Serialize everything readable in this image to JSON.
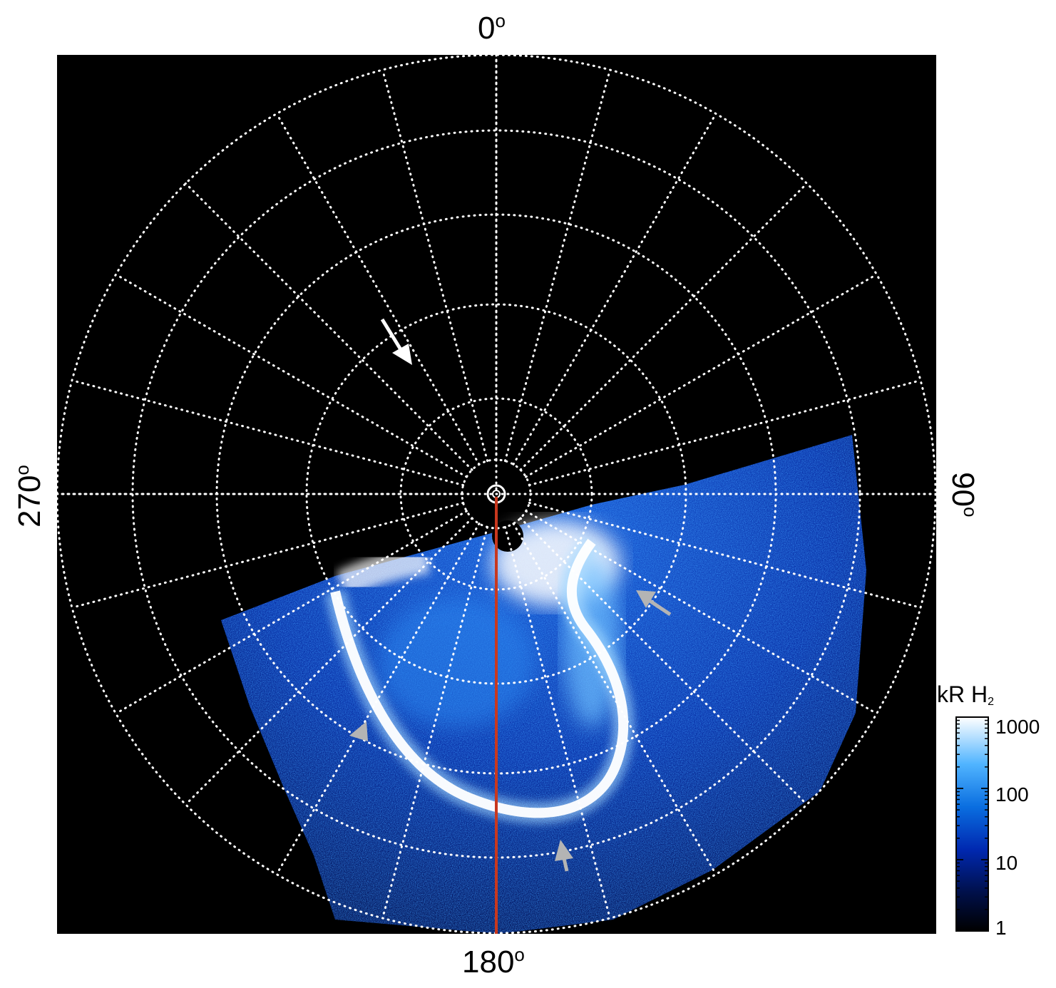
{
  "figure": {
    "labels": {
      "top": "0",
      "right": "90",
      "bottom": "180",
      "left": "270",
      "degree": "o"
    },
    "colorbar": {
      "title": "kR H",
      "title_subscript": "2",
      "ticks": [
        "1000",
        "100",
        "10",
        "1"
      ],
      "scale": "log",
      "range": [
        1,
        1000
      ],
      "colors": [
        "#000000",
        "#001060",
        "#0030c0",
        "#0a7de8",
        "#50b4ff",
        "#ffffff"
      ]
    },
    "grid": {
      "style": "dotted",
      "color": "#ffffff",
      "meridian_count": 24,
      "latitude_circle_count": 6
    },
    "annotations": {
      "central_meridian_color": "#c8381e",
      "arrow_colors": [
        "#ffffff",
        "#b4b4b4"
      ]
    },
    "colors": {
      "background": "#000000",
      "aurora_low": "#0a2a9a",
      "aurora_mid": "#1a7fe8",
      "aurora_high": "#ffffff"
    }
  }
}
